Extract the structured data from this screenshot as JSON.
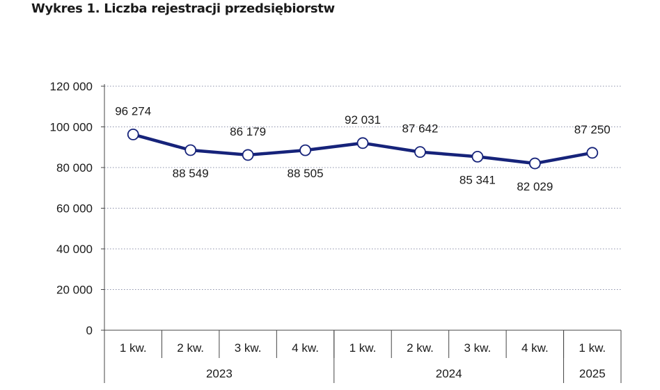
{
  "chart_data": {
    "type": "line",
    "title": "Wykres 1. Liczba rejestracji przedsiębiorstw",
    "categories": [
      "1 kw.",
      "2 kw.",
      "3 kw.",
      "4 kw.",
      "1 kw.",
      "2 kw.",
      "3 kw.",
      "4 kw.",
      "1 kw."
    ],
    "groups": [
      {
        "label": "2023",
        "count": 4
      },
      {
        "label": "2024",
        "count": 4
      },
      {
        "label": "2025",
        "count": 1
      }
    ],
    "values": [
      96274,
      88549,
      86179,
      88505,
      92031,
      87642,
      85341,
      82029,
      87250
    ],
    "data_labels": [
      "96 274",
      "88 549",
      "86 179",
      "88 505",
      "92 031",
      "87 642",
      "85 341",
      "82 029",
      "87 250"
    ],
    "label_position": [
      "above",
      "below",
      "above",
      "below",
      "above",
      "above",
      "below",
      "below",
      "above"
    ],
    "ylim": [
      0,
      120000
    ],
    "yticks": [
      0,
      20000,
      40000,
      60000,
      80000,
      100000,
      120000
    ],
    "ytick_labels": [
      "0",
      "20 000",
      "40 000",
      "60 000",
      "80 000",
      "100 000",
      "120 000"
    ],
    "grid": "horizontal dotted",
    "line_color": "#16237a",
    "marker_fill": "#ffffff"
  }
}
